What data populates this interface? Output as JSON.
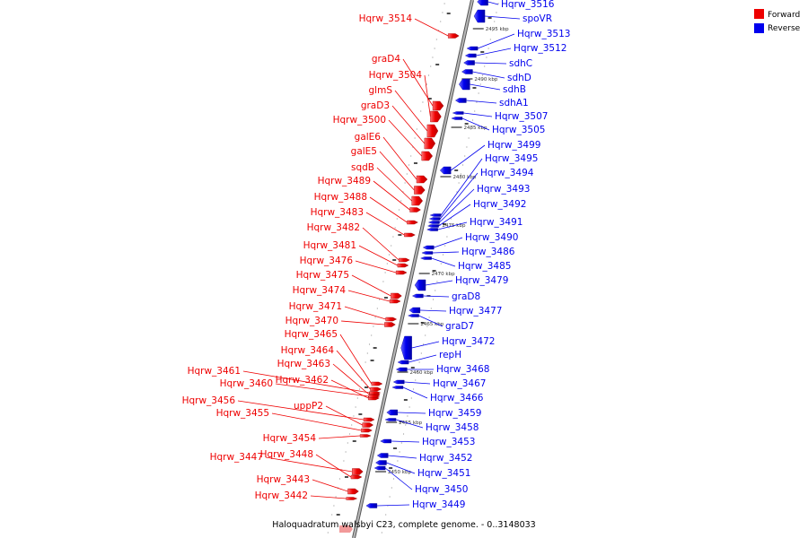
{
  "caption": "Haloquadratum walsbyi C23, complete genome. - 0..3148033",
  "legend": [
    {
      "label": "Forward",
      "color": "#ee0000"
    },
    {
      "label": "Reverse",
      "color": "#0000ee"
    }
  ],
  "colors": {
    "forward": "#ee0000",
    "reverse": "#0000ee",
    "backbone": "#808080"
  },
  "ticks": [
    "2495 kbp",
    "2490 kbp",
    "2485 kbp",
    "2480 kbp",
    "2475 kbp",
    "2470 kbp",
    "2465 kbp",
    "2460 kbp",
    "2455 kbp",
    "2450 kbp"
  ],
  "forward_genes": [
    "Hqrw_3514",
    "graD4",
    "Hqrw_3504",
    "glmS",
    "graD3",
    "Hqrw_3500",
    "galE6",
    "galE5",
    "sqdB",
    "Hqrw_3489",
    "Hqrw_3488",
    "Hqrw_3483",
    "Hqrw_3482",
    "Hqrw_3481",
    "Hqrw_3476",
    "Hqrw_3475",
    "Hqrw_3474",
    "Hqrw_3471",
    "Hqrw_3470",
    "Hqrw_3465",
    "Hqrw_3464",
    "Hqrw_3463",
    "Hqrw_3461",
    "Hqrw_3462",
    "Hqrw_3460",
    "Hqrw_3456",
    "uppP2",
    "Hqrw_3455",
    "Hqrw_3454",
    "Hqrw_3447",
    "Hqrw_3448",
    "Hqrw_3443",
    "Hqrw_3442"
  ],
  "reverse_genes": [
    "Hqrw_3516",
    "spoVR",
    "Hqrw_3513",
    "Hqrw_3512",
    "sdhC",
    "sdhD",
    "sdhB",
    "sdhA1",
    "Hqrw_3507",
    "Hqrw_3505",
    "Hqrw_3499",
    "Hqrw_3495",
    "Hqrw_3494",
    "Hqrw_3493",
    "Hqrw_3492",
    "Hqrw_3491",
    "Hqrw_3490",
    "Hqrw_3486",
    "Hqrw_3485",
    "Hqrw_3479",
    "graD8",
    "Hqrw_3477",
    "graD7",
    "Hqrw_3472",
    "repH",
    "Hqrw_3468",
    "Hqrw_3467",
    "Hqrw_3466",
    "Hqrw_3459",
    "Hqrw_3458",
    "Hqrw_3453",
    "Hqrw_3452",
    "Hqrw_3451",
    "Hqrw_3450",
    "Hqrw_3449"
  ]
}
